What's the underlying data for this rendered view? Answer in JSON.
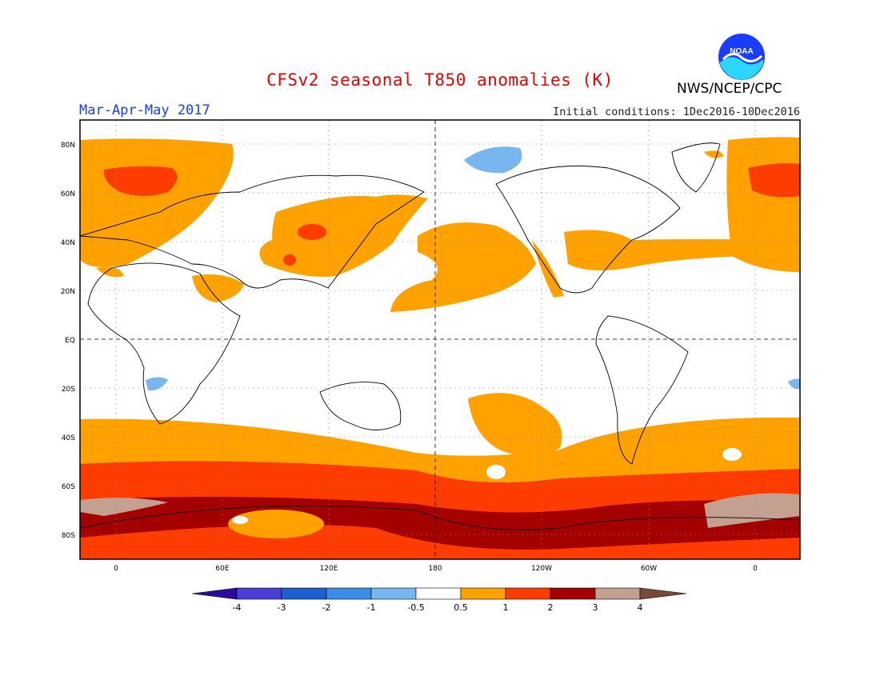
{
  "title": "CFSv2 seasonal T850 anomalies (K)",
  "season": "Mar-Apr-May 2017",
  "initial_conditions": "Initial conditions: 1Dec2016-10Dec2016",
  "organization": "NWS/NCEP/CPC",
  "logo_text": "NOAA",
  "lat_labels": [
    "80N",
    "60N",
    "40N",
    "20N",
    "EQ",
    "20S",
    "40S",
    "60S",
    "80S"
  ],
  "lon_labels": [
    "0",
    "60E",
    "120E",
    "180",
    "120W",
    "60W",
    "0"
  ],
  "colorbar": {
    "labels": [
      "-4",
      "-3",
      "-2",
      "-1",
      "-0.5",
      "0.5",
      "1",
      "2",
      "3",
      "4"
    ],
    "colors": [
      "#2b0a9c",
      "#4b3fd3",
      "#1e60d2",
      "#3a8ee6",
      "#78b6f0",
      "#ffffff",
      "#ffa200",
      "#ff3c00",
      "#a50000",
      "#c4a090",
      "#7a4a38"
    ]
  },
  "anomaly_regions": {
    "warm_0.5_1": "#ffa200",
    "warm_1_2": "#ff3c00",
    "warm_2_3": "#a50000",
    "warm_3_4": "#c4a090",
    "cool_-1_-0.5": "#78b6f0"
  }
}
